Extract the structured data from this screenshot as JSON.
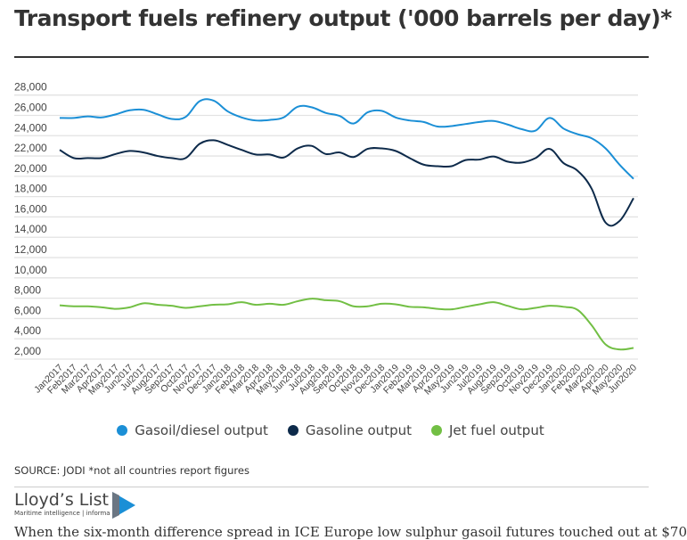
{
  "title": "Transport fuels refinery output ('000 barrels per day)*",
  "source": "SOURCE: JODI *not all countries report figures",
  "logo": {
    "name": "Lloyd’s List",
    "tagline": "Maritime intelligence | informa"
  },
  "body_text": "When the six-month difference spread in ICE Europe low sulphur gasoil futures touched out at $70",
  "chart_data": {
    "type": "line",
    "title": "Transport fuels refinery output ('000 barrels per day)*",
    "ylim": [
      2000,
      28000
    ],
    "yticks": [
      2000,
      4000,
      6000,
      8000,
      10000,
      12000,
      14000,
      16000,
      18000,
      20000,
      22000,
      24000,
      26000,
      28000
    ],
    "ytick_labels": [
      "2,000",
      "4,000",
      "6,000",
      "8,000",
      "10,000",
      "12,000",
      "14,000",
      "16,000",
      "18,000",
      "20,000",
      "22,000",
      "24,000",
      "26,000",
      "28,000"
    ],
    "grid": true,
    "legend_position": "bottom",
    "categories": [
      "Jan2017",
      "Feb2017",
      "Mar2017",
      "Apr2017",
      "May2017",
      "Jun2017",
      "Jul2017",
      "Aug2017",
      "Sep2017",
      "Oct2017",
      "Nov2017",
      "Dec2017",
      "Jan2018",
      "Feb2018",
      "Mar2018",
      "Apr2018",
      "May2018",
      "Jun2018",
      "Jul2018",
      "Aug2018",
      "Sep2018",
      "Oct2018",
      "Nov2018",
      "Dec2018",
      "Jan2019",
      "Feb2019",
      "Mar2019",
      "Apr2019",
      "May2019",
      "Jun2019",
      "Jul2019",
      "Aug2019",
      "Sep2019",
      "Oct2019",
      "Nov2019",
      "Dec2019",
      "Jan2020",
      "Feb2020",
      "Mar2020",
      "Apr2020",
      "May2020",
      "Jun2020"
    ],
    "series": [
      {
        "name": "Gasoil/diesel output",
        "color": "#1b8fd6",
        "values": [
          25750,
          25750,
          25900,
          25800,
          26100,
          26500,
          26550,
          26100,
          25650,
          25850,
          27400,
          27450,
          26400,
          25800,
          25500,
          25550,
          25800,
          26850,
          26800,
          26250,
          25950,
          25200,
          26300,
          26450,
          25800,
          25500,
          25350,
          24900,
          24950,
          25150,
          25350,
          25450,
          25100,
          24650,
          24500,
          25750,
          24700,
          24150,
          23750,
          22750,
          21150,
          19750
        ]
      },
      {
        "name": "Gasoline output",
        "color": "#0d2a4a",
        "values": [
          22600,
          21800,
          21800,
          21800,
          22200,
          22500,
          22350,
          22000,
          21800,
          21800,
          23200,
          23550,
          23100,
          22600,
          22150,
          22150,
          21850,
          22750,
          23000,
          22200,
          22350,
          21900,
          22700,
          22750,
          22500,
          21800,
          21150,
          21000,
          21000,
          21600,
          21650,
          21950,
          21450,
          21350,
          21800,
          22700,
          21300,
          20550,
          18800,
          15450,
          15600,
          17850
        ]
      },
      {
        "name": "Jet fuel output",
        "color": "#72bf44",
        "values": [
          7300,
          7200,
          7200,
          7100,
          6950,
          7100,
          7500,
          7350,
          7250,
          7050,
          7200,
          7350,
          7400,
          7600,
          7350,
          7450,
          7350,
          7700,
          7950,
          7800,
          7700,
          7200,
          7200,
          7450,
          7400,
          7150,
          7100,
          6950,
          6900,
          7150,
          7400,
          7600,
          7250,
          6900,
          7050,
          7250,
          7150,
          6850,
          5350,
          3450,
          2950,
          3100
        ]
      }
    ]
  }
}
